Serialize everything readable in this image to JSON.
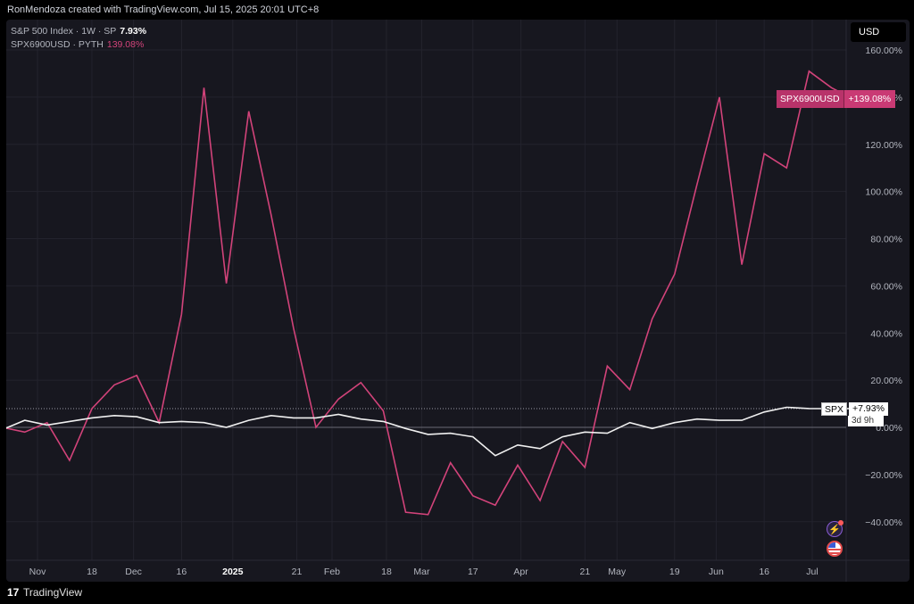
{
  "top_bar": {
    "credit": "RonMendoza created with TradingView.com, Jul 15, 2025 20:01 UTC+8"
  },
  "legend": {
    "spx_label": "S&P 500 Index · 1W · SP",
    "spx_value": "7.93%",
    "sym_label": "SPX6900USD · PYTH",
    "sym_value": "139.08%"
  },
  "currency": "USD",
  "badges": {
    "sym_name": "SPX6900USD",
    "sym_value": "+139.08%",
    "spx_name": "SPX",
    "spx_value": "+7.93%",
    "spx_countdown": "3d 9h"
  },
  "icons": {
    "bolt": "lightning-icon",
    "flag": "us-flag-icon"
  },
  "footer": {
    "brand": "TradingView",
    "logo": "tradingview-logo"
  },
  "colors": {
    "background": "#17171f",
    "spx6900": "#d2437a",
    "spx": "#f0f0f0",
    "grid": "#23232d",
    "axis_text": "#b2b5be"
  },
  "chart_data": {
    "type": "line",
    "title": "",
    "xlabel": "",
    "ylabel": "",
    "ylim": [
      -50,
      160
    ],
    "y_ticks": [
      160,
      140,
      120,
      100,
      80,
      60,
      40,
      20,
      0,
      -20,
      -40
    ],
    "y_tick_labels": [
      "160.00%",
      "140.00%",
      "120.00%",
      "100.00%",
      "80.00%",
      "60.00%",
      "40.00%",
      "20.00%",
      "0.00%",
      "−20.00%",
      "−40.00%"
    ],
    "x_ticks": [
      {
        "date": "2024-11-01",
        "label": "Nov"
      },
      {
        "date": "2024-11-18",
        "label": "18"
      },
      {
        "date": "2024-12-01",
        "label": "Dec"
      },
      {
        "date": "2024-12-16",
        "label": "16"
      },
      {
        "date": "2025-01-01",
        "label": "2025"
      },
      {
        "date": "2025-01-21",
        "label": "21"
      },
      {
        "date": "2025-02-01",
        "label": "Feb"
      },
      {
        "date": "2025-02-18",
        "label": "18"
      },
      {
        "date": "2025-03-01",
        "label": "Mar"
      },
      {
        "date": "2025-03-17",
        "label": "17"
      },
      {
        "date": "2025-04-01",
        "label": "Apr"
      },
      {
        "date": "2025-04-21",
        "label": "21"
      },
      {
        "date": "2025-05-01",
        "label": "May"
      },
      {
        "date": "2025-05-19",
        "label": "19"
      },
      {
        "date": "2025-06-01",
        "label": "Jun"
      },
      {
        "date": "2025-06-16",
        "label": "16"
      },
      {
        "date": "2025-07-01",
        "label": "Jul"
      }
    ],
    "grid": true,
    "x": [
      "2024-10-21",
      "2024-10-28",
      "2024-11-04",
      "2024-11-11",
      "2024-11-18",
      "2024-11-25",
      "2024-12-02",
      "2024-12-09",
      "2024-12-16",
      "2024-12-23",
      "2024-12-30",
      "2025-01-06",
      "2025-01-13",
      "2025-01-20",
      "2025-01-27",
      "2025-02-03",
      "2025-02-10",
      "2025-02-17",
      "2025-02-24",
      "2025-03-03",
      "2025-03-10",
      "2025-03-17",
      "2025-03-24",
      "2025-03-31",
      "2025-04-07",
      "2025-04-14",
      "2025-04-21",
      "2025-04-28",
      "2025-05-05",
      "2025-05-12",
      "2025-05-19",
      "2025-05-26",
      "2025-06-02",
      "2025-06-09",
      "2025-06-16",
      "2025-06-23",
      "2025-06-30",
      "2025-07-07",
      "2025-07-14"
    ],
    "series": [
      {
        "name": "SPX6900USD",
        "values": [
          0,
          -2,
          2,
          -14,
          8,
          18,
          22,
          2,
          48,
          144,
          61,
          134,
          90,
          42,
          0,
          12,
          19,
          7,
          -36,
          -37,
          -15,
          -29,
          -33,
          -16,
          -31,
          -6,
          -17,
          26,
          16,
          46,
          65,
          103,
          140,
          69,
          116,
          110,
          151,
          144,
          139.08
        ]
      },
      {
        "name": "SPX",
        "values": [
          -1,
          3,
          1,
          2.5,
          4,
          5,
          4.5,
          2,
          2.5,
          2,
          0,
          3,
          5,
          4,
          4,
          5.5,
          3.5,
          2.5,
          -0.5,
          -3,
          -2.5,
          -4,
          -12,
          -7.5,
          -9,
          -4,
          -2,
          -2.5,
          2,
          -0.5,
          2,
          3.5,
          3,
          3,
          6.5,
          8.5,
          8,
          7.93,
          7.93
        ]
      }
    ]
  }
}
